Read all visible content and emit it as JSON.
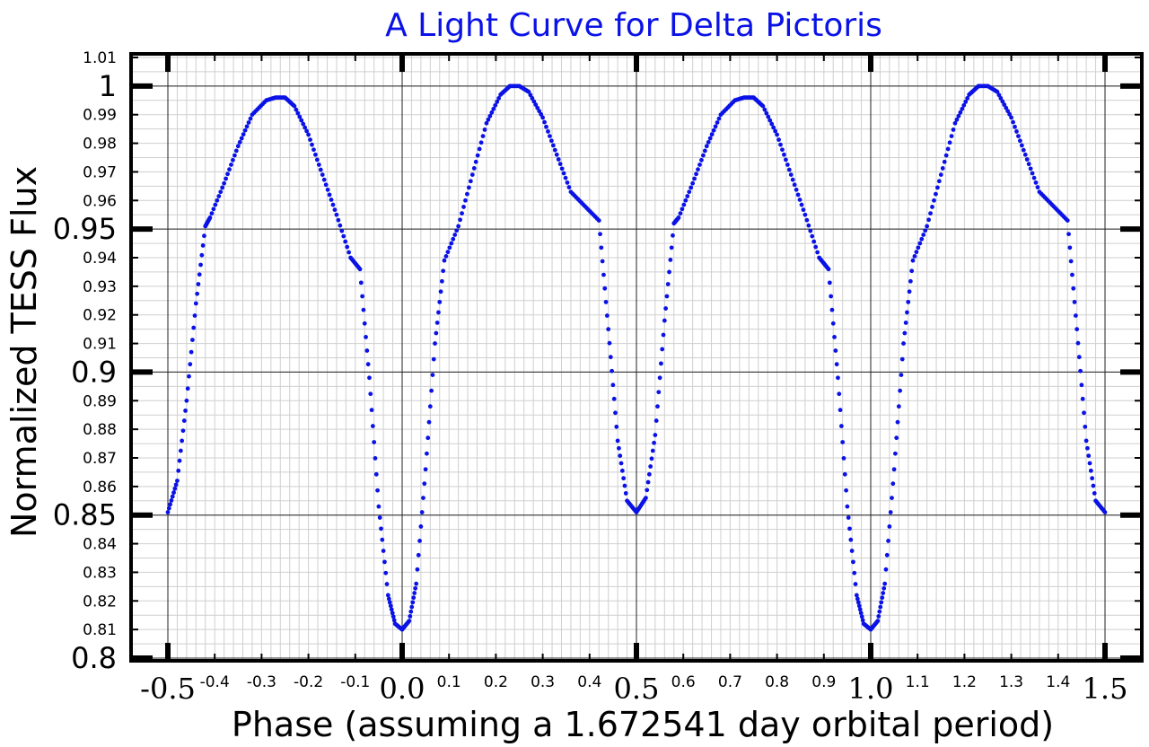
{
  "chart_data": {
    "type": "scatter",
    "title": "A Light Curve for Delta Pictoris",
    "xlabel": "Phase (assuming a 1.672541 day orbital period)",
    "ylabel": "Normalized TESS Flux",
    "xlim": [
      -0.5,
      1.5
    ],
    "ylim": [
      0.8,
      1.01
    ],
    "grid": true,
    "colors": {
      "series": "#0a12e6",
      "title": "#0a12e6",
      "frame": "#000000",
      "minor_grid": "#cfcfcf",
      "major_grid": "#222222"
    },
    "x_ticks_major": [
      {
        "value": -0.5,
        "label": "-0.5"
      },
      {
        "value": 0.0,
        "label": "0.0"
      },
      {
        "value": 0.5,
        "label": "0.5"
      },
      {
        "value": 1.0,
        "label": "1.0"
      },
      {
        "value": 1.5,
        "label": "1.5"
      }
    ],
    "x_ticks_minor": [
      {
        "value": -0.4,
        "label": "-0.4"
      },
      {
        "value": -0.3,
        "label": "-0.3"
      },
      {
        "value": -0.2,
        "label": "-0.2"
      },
      {
        "value": -0.1,
        "label": "-0.1"
      },
      {
        "value": 0.1,
        "label": "0.1"
      },
      {
        "value": 0.2,
        "label": "0.2"
      },
      {
        "value": 0.3,
        "label": "0.3"
      },
      {
        "value": 0.4,
        "label": "0.4"
      },
      {
        "value": 0.6,
        "label": "0.6"
      },
      {
        "value": 0.7,
        "label": "0.7"
      },
      {
        "value": 0.8,
        "label": "0.8"
      },
      {
        "value": 0.9,
        "label": "0.9"
      },
      {
        "value": 1.1,
        "label": "1.1"
      },
      {
        "value": 1.2,
        "label": "1.2"
      },
      {
        "value": 1.3,
        "label": "1.3"
      },
      {
        "value": 1.4,
        "label": "1.4"
      }
    ],
    "y_ticks_major": [
      {
        "value": 0.8,
        "label": "0.8"
      },
      {
        "value": 0.85,
        "label": "0.85"
      },
      {
        "value": 0.9,
        "label": "0.9"
      },
      {
        "value": 0.95,
        "label": "0.95"
      },
      {
        "value": 1.0,
        "label": "1"
      }
    ],
    "y_ticks_minor": [
      {
        "value": 0.81,
        "label": "0.81"
      },
      {
        "value": 0.82,
        "label": "0.82"
      },
      {
        "value": 0.83,
        "label": "0.83"
      },
      {
        "value": 0.84,
        "label": "0.84"
      },
      {
        "value": 0.86,
        "label": "0.86"
      },
      {
        "value": 0.87,
        "label": "0.87"
      },
      {
        "value": 0.88,
        "label": "0.88"
      },
      {
        "value": 0.89,
        "label": "0.89"
      },
      {
        "value": 0.91,
        "label": "0.91"
      },
      {
        "value": 0.92,
        "label": "0.92"
      },
      {
        "value": 0.93,
        "label": "0.93"
      },
      {
        "value": 0.94,
        "label": "0.94"
      },
      {
        "value": 0.96,
        "label": "0.96"
      },
      {
        "value": 0.97,
        "label": "0.97"
      },
      {
        "value": 0.98,
        "label": "0.98"
      },
      {
        "value": 0.99,
        "label": "0.99"
      },
      {
        "value": 1.01,
        "label": "1.01"
      }
    ],
    "series": [
      {
        "x": [
          -0.5,
          -0.48,
          -0.46,
          -0.44,
          -0.42,
          -0.41,
          -0.38,
          -0.35,
          -0.32,
          -0.29,
          -0.27,
          -0.25,
          -0.23,
          -0.2,
          -0.17,
          -0.14,
          -0.11,
          -0.09,
          -0.07,
          -0.05,
          -0.03,
          -0.015,
          0.0,
          0.015,
          0.03,
          0.05,
          0.07,
          0.09,
          0.12,
          0.15,
          0.18,
          0.21,
          0.23,
          0.25,
          0.27,
          0.3,
          0.33,
          0.36,
          0.39,
          0.42,
          0.44,
          0.46,
          0.48,
          0.5,
          0.52,
          0.54,
          0.56,
          0.58,
          0.59,
          0.62,
          0.65,
          0.68,
          0.71,
          0.73,
          0.75,
          0.77,
          0.8,
          0.83,
          0.86,
          0.89,
          0.91,
          0.93,
          0.95,
          0.97,
          0.985,
          1.0,
          1.015,
          1.03,
          1.05,
          1.07,
          1.09,
          1.12,
          1.15,
          1.18,
          1.21,
          1.23,
          1.25,
          1.27,
          1.3,
          1.33,
          1.36,
          1.39,
          1.42,
          1.44,
          1.46,
          1.48,
          1.5
        ],
        "y": [
          0.851,
          0.862,
          0.89,
          0.924,
          0.951,
          0.954,
          0.966,
          0.979,
          0.99,
          0.995,
          0.996,
          0.996,
          0.993,
          0.983,
          0.969,
          0.955,
          0.94,
          0.936,
          0.898,
          0.853,
          0.822,
          0.812,
          0.81,
          0.813,
          0.826,
          0.866,
          0.91,
          0.939,
          0.951,
          0.969,
          0.987,
          0.997,
          1.0,
          1.0,
          0.998,
          0.989,
          0.976,
          0.963,
          0.958,
          0.953,
          0.915,
          0.876,
          0.855,
          0.851,
          0.856,
          0.878,
          0.918,
          0.952,
          0.954,
          0.966,
          0.979,
          0.99,
          0.995,
          0.996,
          0.996,
          0.993,
          0.983,
          0.969,
          0.955,
          0.94,
          0.936,
          0.898,
          0.853,
          0.822,
          0.812,
          0.81,
          0.813,
          0.826,
          0.866,
          0.91,
          0.939,
          0.951,
          0.969,
          0.987,
          0.997,
          1.0,
          1.0,
          0.998,
          0.989,
          0.976,
          0.963,
          0.958,
          0.953,
          0.915,
          0.876,
          0.855,
          0.851
        ]
      }
    ]
  }
}
